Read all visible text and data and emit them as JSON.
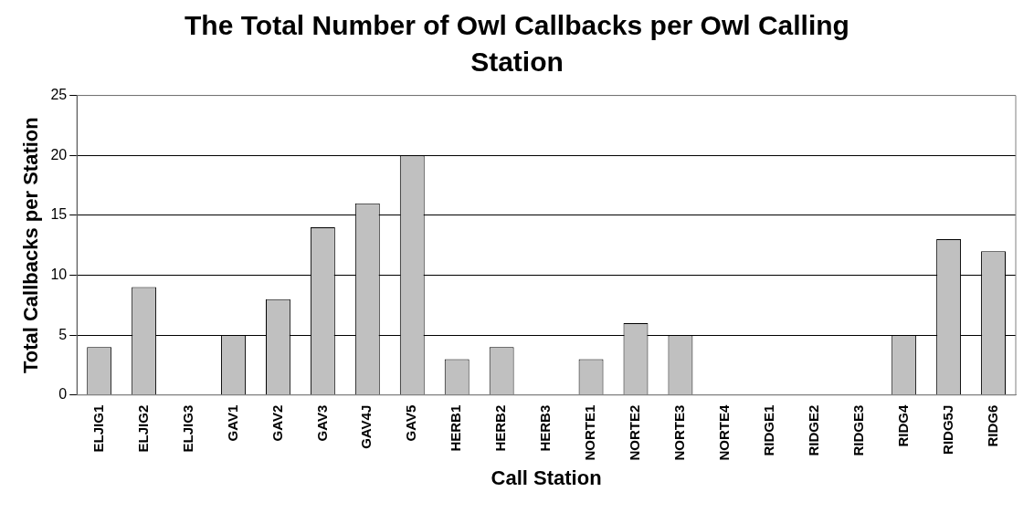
{
  "chart_data": {
    "type": "bar",
    "title": "The Total Number of Owl Callbacks per Owl Calling Station",
    "xlabel": "Call Station",
    "ylabel": "Total Callbacks per Station",
    "categories": [
      "ELJIG1",
      "ELJIG2",
      "ELJIG3",
      "GAV1",
      "GAV2",
      "GAV3",
      "GAV4J",
      "GAV5",
      "HERB1",
      "HERB2",
      "HERB3",
      "NORTE1",
      "NORTE2",
      "NORTE3",
      "NORTE4",
      "RIDGE1",
      "RIDGE2",
      "RIDGE3",
      "RIDG4",
      "RIDG5J",
      "RIDG6"
    ],
    "values": [
      4,
      9,
      0,
      5,
      8,
      14,
      16,
      20,
      3,
      4,
      0,
      3,
      6,
      5,
      0,
      0,
      0,
      0,
      5,
      13,
      12
    ],
    "color": "#c0c0c0",
    "ylim": [
      0,
      25
    ],
    "yticks": [
      0,
      5,
      10,
      15,
      20,
      25
    ],
    "grid": "y"
  }
}
